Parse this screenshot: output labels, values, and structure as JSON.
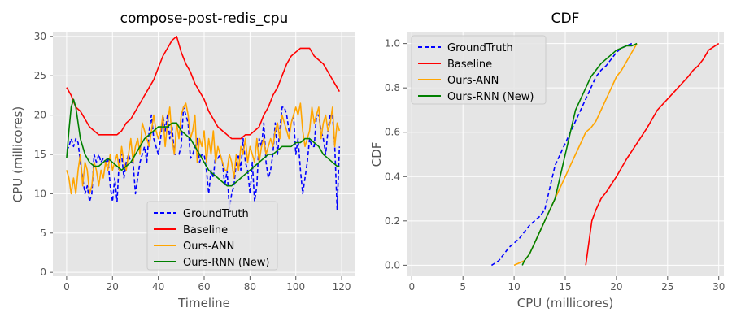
{
  "chart_data": [
    {
      "type": "line",
      "title": "compose-post-redis_cpu",
      "xlabel": "Timeline",
      "ylabel": "CPU (millicores)",
      "xlim": [
        -6,
        126
      ],
      "ylim": [
        -0.5,
        30.5
      ],
      "xticks": [
        0,
        20,
        40,
        60,
        80,
        100,
        120
      ],
      "yticks": [
        0,
        5,
        10,
        15,
        20,
        25,
        30
      ],
      "grid": true,
      "legend_position": "bottom-center",
      "series": [
        {
          "name": "GroundTruth",
          "color": "#0000ff",
          "dash": "dashed",
          "x": [
            0,
            1,
            2,
            3,
            4,
            5,
            6,
            7,
            8,
            9,
            10,
            11,
            12,
            13,
            14,
            15,
            16,
            17,
            18,
            19,
            20,
            21,
            22,
            23,
            24,
            25,
            26,
            27,
            28,
            29,
            30,
            31,
            32,
            33,
            34,
            35,
            36,
            37,
            38,
            39,
            40,
            41,
            42,
            43,
            44,
            45,
            46,
            47,
            48,
            49,
            50,
            51,
            52,
            53,
            54,
            55,
            56,
            57,
            58,
            59,
            60,
            61,
            62,
            63,
            64,
            65,
            66,
            67,
            68,
            69,
            70,
            71,
            72,
            73,
            74,
            75,
            76,
            77,
            78,
            79,
            80,
            81,
            82,
            83,
            84,
            85,
            86,
            87,
            88,
            89,
            90,
            91,
            92,
            93,
            94,
            95,
            96,
            97,
            98,
            99,
            100,
            101,
            102,
            103,
            104,
            105,
            106,
            107,
            108,
            109,
            110,
            111,
            112,
            113,
            114,
            115,
            116,
            117,
            118,
            119
          ],
          "y": [
            15.5,
            16,
            17,
            16,
            17,
            16.5,
            14,
            12,
            10,
            11,
            9,
            10,
            15,
            14,
            15,
            14,
            14.5,
            14,
            14.5,
            11,
            9,
            12,
            9,
            14.5,
            15,
            12,
            14,
            15,
            14,
            14,
            10,
            12,
            14,
            15,
            16,
            14,
            18,
            20,
            17,
            16,
            15,
            17,
            20,
            18,
            20,
            17,
            18.5,
            15,
            15,
            15,
            16,
            21,
            20,
            19,
            14.5,
            15,
            16,
            17,
            14,
            15,
            15,
            13,
            10,
            13,
            12,
            15,
            14.5,
            15,
            14,
            11,
            13,
            8,
            10,
            11,
            14,
            15,
            13,
            17,
            14,
            13,
            10,
            14,
            9,
            11,
            17,
            16,
            19,
            14,
            12,
            13,
            15,
            19,
            15,
            18,
            21,
            21,
            20,
            18,
            19,
            20,
            15,
            17,
            13,
            10,
            12,
            14,
            17,
            16,
            16,
            20,
            20,
            18,
            17,
            15,
            18,
            20,
            20,
            16,
            8,
            16
          ]
        },
        {
          "name": "Baseline",
          "color": "#ff0000",
          "dash": "solid",
          "x": [
            0,
            2,
            4,
            6,
            8,
            10,
            12,
            14,
            16,
            18,
            20,
            22,
            24,
            26,
            28,
            30,
            32,
            34,
            36,
            38,
            40,
            42,
            44,
            46,
            48,
            50,
            52,
            54,
            56,
            58,
            60,
            62,
            64,
            66,
            68,
            70,
            72,
            74,
            76,
            78,
            80,
            82,
            84,
            86,
            88,
            90,
            92,
            94,
            96,
            98,
            100,
            102,
            104,
            106,
            108,
            110,
            112,
            114,
            116,
            118,
            119
          ],
          "y": [
            23.5,
            22.5,
            21,
            20.5,
            19.5,
            18.5,
            18,
            17.5,
            17.5,
            17.5,
            17.5,
            17.5,
            18,
            19,
            19.5,
            20.5,
            21.5,
            22.5,
            23.5,
            24.5,
            26,
            27.5,
            28.5,
            29.5,
            30,
            28,
            26.5,
            25.5,
            24,
            23,
            22,
            20.5,
            19.5,
            18.5,
            18,
            17.5,
            17,
            17,
            17,
            17.5,
            17.5,
            18,
            18.5,
            20,
            21,
            22.5,
            23.5,
            25,
            26.5,
            27.5,
            28,
            28.5,
            28.5,
            28.5,
            27.5,
            27,
            26.5,
            25.5,
            24.5,
            23.5,
            23
          ]
        },
        {
          "name": "Ours-ANN",
          "color": "#ffa500",
          "dash": "solid",
          "x": [
            0,
            1,
            2,
            3,
            4,
            5,
            6,
            7,
            8,
            9,
            10,
            11,
            12,
            13,
            14,
            15,
            16,
            17,
            18,
            19,
            20,
            21,
            22,
            23,
            24,
            25,
            26,
            27,
            28,
            29,
            30,
            31,
            32,
            33,
            34,
            35,
            36,
            37,
            38,
            39,
            40,
            41,
            42,
            43,
            44,
            45,
            46,
            47,
            48,
            49,
            50,
            51,
            52,
            53,
            54,
            55,
            56,
            57,
            58,
            59,
            60,
            61,
            62,
            63,
            64,
            65,
            66,
            67,
            68,
            69,
            70,
            71,
            72,
            73,
            74,
            75,
            76,
            77,
            78,
            79,
            80,
            81,
            82,
            83,
            84,
            85,
            86,
            87,
            88,
            89,
            90,
            91,
            92,
            93,
            94,
            95,
            96,
            97,
            98,
            99,
            100,
            101,
            102,
            103,
            104,
            105,
            106,
            107,
            108,
            109,
            110,
            111,
            112,
            113,
            114,
            115,
            116,
            117,
            118,
            119
          ],
          "y": [
            13,
            12,
            10,
            12,
            10,
            13,
            15,
            11,
            14,
            13,
            10,
            11,
            14,
            13,
            11,
            13,
            12,
            14,
            13,
            15,
            13,
            14,
            15,
            13,
            16,
            14,
            13,
            15,
            17,
            14,
            16,
            17,
            15,
            19,
            18,
            17,
            16,
            18,
            20,
            18,
            17,
            18,
            20,
            16,
            19,
            21,
            17,
            15,
            19,
            17,
            20,
            21,
            21.5,
            20,
            17,
            18,
            20,
            14,
            17,
            16,
            18,
            14,
            17,
            15,
            18,
            14,
            16,
            15,
            14,
            13,
            13,
            15,
            14,
            12,
            15,
            13,
            16,
            15,
            17,
            14,
            16,
            15,
            14,
            17,
            14,
            16,
            17,
            15,
            16,
            17,
            16,
            18,
            19,
            17,
            20,
            19,
            18,
            17,
            19,
            20,
            21,
            20,
            21.5,
            18,
            16,
            17,
            18,
            21,
            19,
            20,
            21,
            17,
            19,
            20,
            18,
            19,
            21,
            16,
            19,
            18
          ]
        },
        {
          "name": "Ours-RNN (New)",
          "color": "#008000",
          "dash": "solid",
          "x": [
            0,
            1,
            2,
            3,
            4,
            5,
            6,
            8,
            10,
            12,
            14,
            16,
            18,
            20,
            22,
            24,
            26,
            28,
            30,
            32,
            34,
            36,
            38,
            40,
            42,
            44,
            46,
            48,
            50,
            52,
            54,
            56,
            58,
            60,
            62,
            64,
            66,
            68,
            70,
            72,
            74,
            76,
            78,
            80,
            82,
            84,
            86,
            88,
            90,
            92,
            94,
            96,
            98,
            100,
            102,
            104,
            106,
            108,
            110,
            112,
            114,
            116,
            118,
            119
          ],
          "y": [
            14.5,
            18,
            21,
            22,
            21,
            19,
            17,
            15,
            14,
            13.5,
            13.5,
            14,
            14.5,
            14,
            13.5,
            13,
            13.5,
            14,
            15,
            16,
            17,
            17.5,
            18,
            18.5,
            18.5,
            18.5,
            19,
            19,
            18,
            17.5,
            17,
            16,
            15,
            14,
            13,
            12.5,
            12,
            11.5,
            11,
            11,
            11.5,
            12,
            12.5,
            13,
            13.5,
            14,
            14.5,
            15,
            15,
            15.5,
            16,
            16,
            16,
            16.5,
            16.5,
            17,
            17,
            16.5,
            16,
            15,
            14.5,
            14,
            13.5,
            13.5
          ]
        }
      ]
    },
    {
      "type": "line",
      "title": "CDF",
      "xlabel": "CPU (millicores)",
      "ylabel": "CDF",
      "xlim": [
        -0.5,
        30.5
      ],
      "ylim": [
        -0.05,
        1.05
      ],
      "xticks": [
        0,
        5,
        10,
        15,
        20,
        25,
        30
      ],
      "yticks": [
        0.0,
        0.2,
        0.4,
        0.6,
        0.8,
        1.0
      ],
      "ytick_labels": [
        "0.0",
        "0.2",
        "0.4",
        "0.6",
        "0.8",
        "1.0"
      ],
      "grid": true,
      "legend_position": "top-left",
      "series": [
        {
          "name": "GroundTruth",
          "color": "#0000ff",
          "dash": "dashed",
          "x": [
            7.8,
            8.5,
            9,
            9.5,
            10,
            10.5,
            11,
            11.5,
            12,
            12.5,
            13,
            13.5,
            14,
            14.5,
            15,
            15.5,
            16,
            16.5,
            17,
            17.5,
            18,
            18.5,
            19,
            19.5,
            20,
            20.5,
            21,
            21.5
          ],
          "y": [
            0.0,
            0.02,
            0.05,
            0.08,
            0.1,
            0.12,
            0.15,
            0.18,
            0.2,
            0.22,
            0.25,
            0.35,
            0.45,
            0.5,
            0.55,
            0.6,
            0.65,
            0.7,
            0.75,
            0.8,
            0.85,
            0.88,
            0.9,
            0.93,
            0.96,
            0.98,
            0.99,
            1.0
          ]
        },
        {
          "name": "Baseline",
          "color": "#ff0000",
          "dash": "solid",
          "x": [
            17,
            17.3,
            17.6,
            18,
            18.5,
            19,
            20,
            21,
            22,
            23,
            24,
            25,
            26,
            27,
            27.5,
            28,
            28.5,
            29,
            30
          ],
          "y": [
            0.0,
            0.1,
            0.2,
            0.25,
            0.3,
            0.33,
            0.4,
            0.48,
            0.55,
            0.62,
            0.7,
            0.75,
            0.8,
            0.85,
            0.88,
            0.9,
            0.93,
            0.97,
            1.0
          ]
        },
        {
          "name": "Ours-ANN",
          "color": "#ffa500",
          "dash": "solid",
          "x": [
            10,
            10.5,
            11,
            11.5,
            12,
            12.5,
            13,
            13.5,
            14,
            14.5,
            15,
            15.5,
            16,
            16.5,
            17,
            17.5,
            18,
            18.5,
            19,
            19.5,
            20,
            20.5,
            21,
            21.5,
            22
          ],
          "y": [
            0.0,
            0.01,
            0.02,
            0.05,
            0.1,
            0.15,
            0.2,
            0.25,
            0.3,
            0.35,
            0.4,
            0.45,
            0.5,
            0.55,
            0.6,
            0.62,
            0.65,
            0.7,
            0.75,
            0.8,
            0.85,
            0.88,
            0.92,
            0.96,
            1.0
          ]
        },
        {
          "name": "Ours-RNN (New)",
          "color": "#008000",
          "dash": "solid",
          "x": [
            10.8,
            11,
            11.5,
            12,
            12.5,
            13,
            13.5,
            14,
            14.5,
            15,
            15.5,
            16,
            16.5,
            17,
            17.5,
            18,
            18.5,
            19,
            19.5,
            20,
            20.5,
            21,
            21.5,
            22
          ],
          "y": [
            0.0,
            0.02,
            0.05,
            0.1,
            0.15,
            0.2,
            0.25,
            0.3,
            0.4,
            0.5,
            0.6,
            0.7,
            0.75,
            0.8,
            0.85,
            0.88,
            0.91,
            0.93,
            0.95,
            0.97,
            0.98,
            0.99,
            0.99,
            1.0
          ]
        }
      ]
    }
  ]
}
